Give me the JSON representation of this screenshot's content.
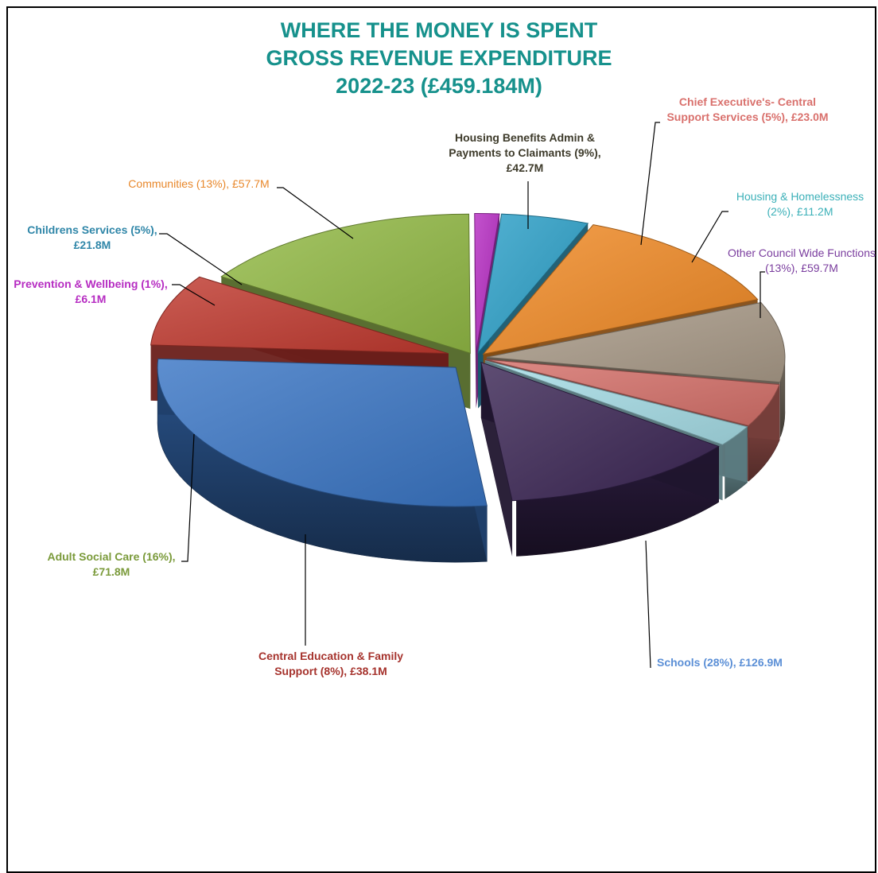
{
  "chart_data": {
    "type": "pie",
    "title_lines": [
      "WHERE THE MONEY IS SPENT",
      "GROSS REVENUE EXPENDITURE",
      "2022-23 (£459.184M)"
    ],
    "title_color": "#16918c",
    "slices": [
      {
        "key": "schools",
        "value": 126.9,
        "color": "#3a75c4",
        "label_color": "#5b8fd6",
        "bold": true,
        "label_lines": [
          "Schools  (28%), £126.9M"
        ]
      },
      {
        "key": "central-education",
        "value": 38.1,
        "color": "#c0392f",
        "label_color": "#a6332d",
        "bold": true,
        "label_lines": [
          "Central Education & Family",
          "Support (8%),  £38.1M"
        ]
      },
      {
        "key": "adult-social-care",
        "value": 71.8,
        "color": "#92b945",
        "label_color": "#7a9a3a",
        "bold": true,
        "label_lines": [
          "Adult Social Care (16%),",
          "£71.8M"
        ]
      },
      {
        "key": "prevention-wellbeing",
        "value": 6.1,
        "color": "#b62cc2",
        "label_color": "#b62cc2",
        "bold": true,
        "label_lines": [
          "Prevention & Wellbeing  (1%),",
          "£6.1M"
        ]
      },
      {
        "key": "childrens-services",
        "value": 21.8,
        "color": "#2ca0c8",
        "label_color": "#2f86a8",
        "bold": true,
        "label_lines": [
          "Childrens Services  (5%),",
          "£21.8M"
        ]
      },
      {
        "key": "communities",
        "value": 57.7,
        "color": "#f08a25",
        "label_color": "#e8872a",
        "bold": false,
        "label_lines": [
          "Communities (13%), £57.7M"
        ]
      },
      {
        "key": "housing-benefits",
        "value": 42.7,
        "color": "#a99a88",
        "label_color": "#3d3a2a",
        "bold": true,
        "label_lines": [
          "Housing Benefits Admin &",
          "Payments to Claimants (9%),",
          "£42.7M"
        ]
      },
      {
        "key": "chief-executives",
        "value": 23.0,
        "color": "#d5706a",
        "label_color": "#d9706c",
        "bold": true,
        "label_lines": [
          "Chief Executive's- Central",
          "Support Services (5%), £23.0M"
        ]
      },
      {
        "key": "housing-homelessness",
        "value": 11.2,
        "color": "#a6dde6",
        "label_color": "#3bb0b8",
        "bold": false,
        "label_lines": [
          "Housing & Homelessness",
          "(2%), £11.2M"
        ]
      },
      {
        "key": "other-council",
        "value": 59.7,
        "color": "#3b2654",
        "label_color": "#7a3d9e",
        "bold": false,
        "label_lines": [
          "Other Council Wide Functions",
          "(13%), £59.7M"
        ]
      }
    ]
  }
}
